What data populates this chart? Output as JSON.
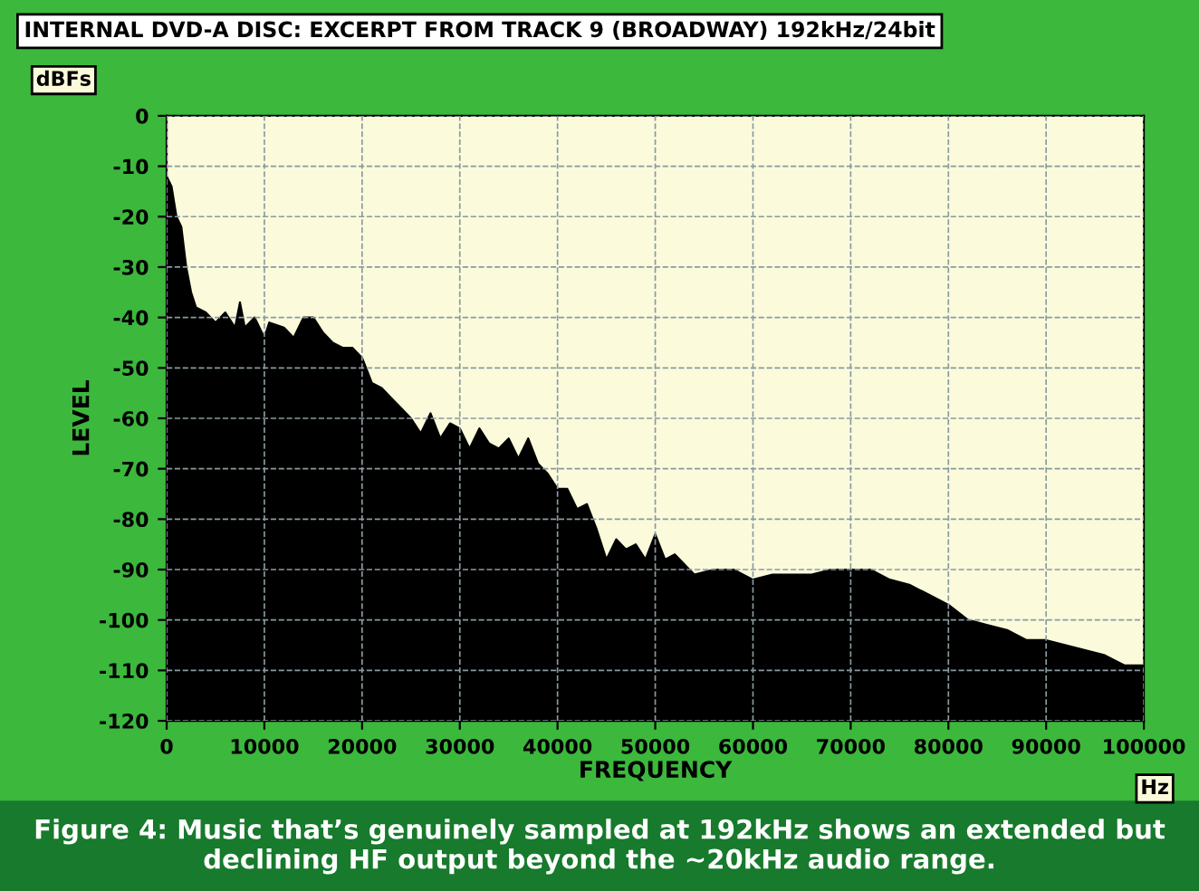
{
  "chart_data": {
    "type": "area",
    "title": "INTERNAL DVD-A DISC: EXCERPT FROM TRACK 9 (BROADWAY) 192kHz/24bit",
    "xlabel": "FREQUENCY",
    "ylabel": "LEVEL",
    "annotations": [
      "dBFs",
      "Hz",
      "Figure 4: Music that’s genuinely sampled at 192kHz shows an extended but declining HF output beyond the ~20kHz audio range."
    ],
    "x": [
      0,
      500,
      1000,
      1500,
      2000,
      2500,
      3000,
      4000,
      5000,
      6000,
      7000,
      7500,
      8000,
      9000,
      10000,
      10500,
      12000,
      13000,
      14000,
      15000,
      16000,
      17000,
      18000,
      19000,
      20000,
      21000,
      22000,
      23000,
      24000,
      25000,
      26000,
      27000,
      28000,
      29000,
      30000,
      31000,
      32000,
      33000,
      34000,
      35000,
      36000,
      37000,
      38000,
      39000,
      40000,
      41000,
      42000,
      43000,
      44000,
      45000,
      46000,
      47000,
      48000,
      49000,
      50000,
      51000,
      52000,
      54000,
      56000,
      58000,
      60000,
      62000,
      64000,
      66000,
      68000,
      70000,
      72000,
      74000,
      76000,
      78000,
      80000,
      82000,
      84000,
      86000,
      88000,
      90000,
      92000,
      94000,
      96000,
      98000,
      100000
    ],
    "series": [
      {
        "color": "#000000",
        "values": [
          -12,
          -14,
          -20,
          -22,
          -30,
          -35,
          -38,
          -39,
          -41,
          -39,
          -42,
          -37,
          -42,
          -40,
          -44,
          -41,
          -42,
          -44,
          -40,
          -40,
          -43,
          -45,
          -46,
          -46,
          -48,
          -53,
          -54,
          -56,
          -58,
          -60,
          -63,
          -59,
          -64,
          -61,
          -62,
          -66,
          -62,
          -65,
          -66,
          -64,
          -68,
          -64,
          -69,
          -71,
          -74,
          -74,
          -78,
          -77,
          -82,
          -88,
          -84,
          -86,
          -85,
          -88,
          -83,
          -88,
          -87,
          -91,
          -90,
          -90,
          -92,
          -91,
          -91,
          -91,
          -90,
          -90,
          -90,
          -92,
          -93,
          -95,
          -97,
          -100,
          -101,
          -102,
          -104,
          -104,
          -105,
          -106,
          -107,
          -109,
          -109
        ]
      }
    ],
    "xlim": [
      0,
      100000
    ],
    "xticks": [
      0,
      10000,
      20000,
      30000,
      40000,
      50000,
      60000,
      70000,
      80000,
      90000,
      100000
    ],
    "ylim": [
      -120,
      0
    ],
    "yticks": [
      -120,
      -110,
      -100,
      -90,
      -80,
      -70,
      -60,
      -50,
      -40,
      -30,
      -20,
      -10,
      0
    ],
    "grid": true
  }
}
